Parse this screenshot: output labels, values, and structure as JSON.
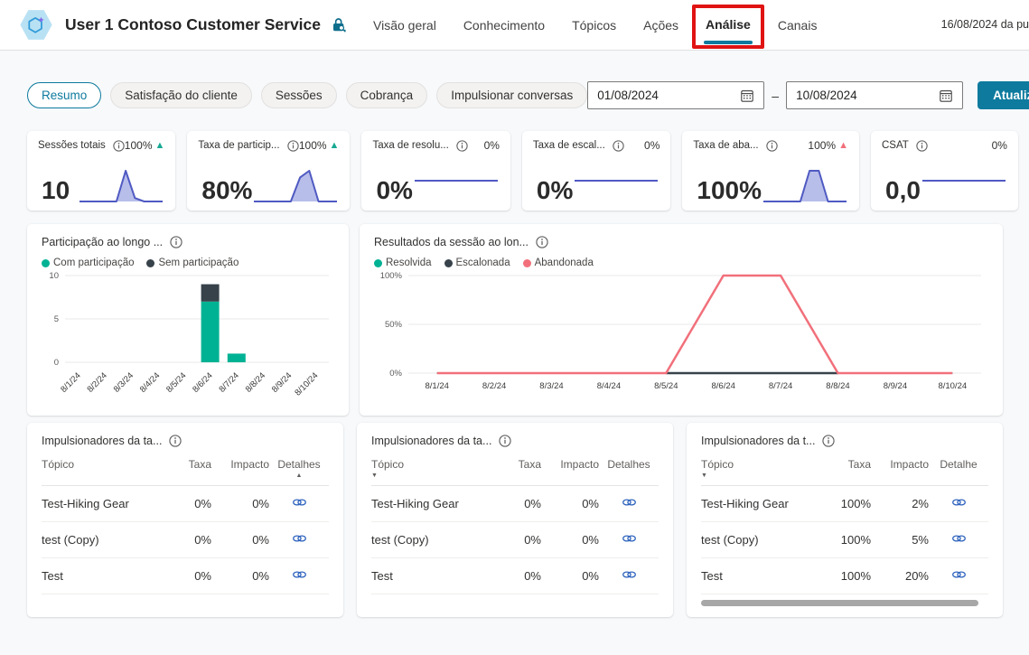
{
  "colors": {
    "accent": "#0e7a9e",
    "annotation": "#e01313",
    "spark_line": "#4f5ac2",
    "spark_fill": "#b0b7e8",
    "link_icon": "#2e63bd",
    "trend_up_teal": "#17a993",
    "trend_up_red": "#f1707b",
    "grid": "#e9e9e9"
  },
  "icons": {
    "trend_up": "▲",
    "sort_asc": "▲",
    "sort_desc": "▼"
  },
  "topbar": {
    "bot_name": "User 1 Contoso Customer Service",
    "nav_items": [
      "Visão geral",
      "Conhecimento",
      "Tópicos",
      "Ações",
      "Análise",
      "Canais"
    ],
    "active_nav": "Análise",
    "publish_info": "16/08/2024 da pu"
  },
  "filters": {
    "tabs": [
      {
        "label": "Resumo",
        "active": true
      },
      {
        "label": "Satisfação do cliente",
        "active": false
      },
      {
        "label": "Sessões",
        "active": false
      },
      {
        "label": "Cobrança",
        "active": false
      },
      {
        "label": "Impulsionar conversas",
        "active": false
      }
    ],
    "date_from": "01/08/2024",
    "date_to": "10/08/2024",
    "range_separator": "–",
    "update_button": "Atualizar"
  },
  "kpis": [
    {
      "label": "Sessões totais",
      "trend": "100%",
      "trend_dir": "up",
      "trend_color": "#17a993",
      "value": "10",
      "spark_values": [
        0,
        0,
        0,
        0,
        0,
        9,
        1,
        0,
        0,
        0
      ]
    },
    {
      "label": "Taxa de particip...",
      "trend": "100%",
      "trend_dir": "up",
      "trend_color": "#17a993",
      "value": "80%",
      "spark_values": [
        0,
        0,
        0,
        0,
        0,
        78,
        100,
        0,
        0,
        0
      ]
    },
    {
      "label": "Taxa de resolu...",
      "trend": "0%",
      "trend_dir": null,
      "trend_color": null,
      "value": "0%",
      "spark_values": [
        0,
        0,
        0,
        0,
        0,
        0,
        0,
        0,
        0,
        0
      ]
    },
    {
      "label": "Taxa de escal...",
      "trend": "0%",
      "trend_dir": null,
      "trend_color": null,
      "value": "0%",
      "spark_values": [
        0,
        0,
        0,
        0,
        0,
        0,
        0,
        0,
        0,
        0
      ]
    },
    {
      "label": "Taxa de aba...",
      "trend": "100%",
      "trend_dir": "up",
      "trend_color": "#f1707b",
      "value": "100%",
      "spark_values": [
        0,
        0,
        0,
        0,
        0,
        100,
        100,
        0,
        0,
        0
      ]
    },
    {
      "label": "CSAT",
      "trend": "0%",
      "trend_dir": null,
      "trend_color": null,
      "value": "0,0",
      "spark_values": [
        0,
        0,
        0,
        0,
        0,
        0,
        0,
        0,
        0,
        0
      ]
    }
  ],
  "charts": {
    "engagement": {
      "type": "bar",
      "title": "Participação ao longo ...",
      "legend": [
        {
          "label": "Com participação",
          "color": "#00b294"
        },
        {
          "label": "Sem participação",
          "color": "#37424a"
        }
      ],
      "categories": [
        "8/1/24",
        "8/2/24",
        "8/3/24",
        "8/4/24",
        "8/5/24",
        "8/6/24",
        "8/7/24",
        "8/8/24",
        "8/9/24",
        "8/10/24"
      ],
      "series": [
        {
          "name": "Com participação",
          "values": [
            0,
            0,
            0,
            0,
            0,
            7,
            1,
            0,
            0,
            0
          ]
        },
        {
          "name": "Sem participação",
          "values": [
            0,
            0,
            0,
            0,
            0,
            2,
            0,
            0,
            0,
            0
          ]
        }
      ],
      "yticks": [
        0,
        5,
        10
      ],
      "ymax": 10
    },
    "outcomes": {
      "type": "line",
      "title": "Resultados da sessão ao lon...",
      "legend": [
        {
          "label": "Resolvida",
          "color": "#00b294"
        },
        {
          "label": "Escalonada",
          "color": "#37424a"
        },
        {
          "label": "Abandonada",
          "color": "#f1707b"
        }
      ],
      "categories": [
        "8/1/24",
        "8/2/24",
        "8/3/24",
        "8/4/24",
        "8/5/24",
        "8/6/24",
        "8/7/24",
        "8/8/24",
        "8/9/24",
        "8/10/24"
      ],
      "series": [
        {
          "name": "Resolvida",
          "values": [
            0,
            0,
            0,
            0,
            0,
            0,
            0,
            0,
            0,
            0
          ]
        },
        {
          "name": "Escalonada",
          "values": [
            null,
            null,
            null,
            null,
            0,
            0,
            0,
            0,
            null,
            null
          ]
        },
        {
          "name": "Abandonada",
          "values": [
            0,
            0,
            0,
            0,
            0,
            100,
            100,
            0,
            0,
            0
          ]
        }
      ],
      "ytick_labels": [
        "0%",
        "50%",
        "100%"
      ],
      "ytick_values": [
        0,
        50,
        100
      ],
      "ymax": 100
    }
  },
  "driver_tables": [
    {
      "title": "Impulsionadores da ta...",
      "columns": [
        "Tópico",
        "Taxa",
        "Impacto",
        "Detalhes"
      ],
      "sort_column": "Detalhes",
      "sort_dir": "asc",
      "rows": [
        [
          "Test-Hiking Gear",
          "0%",
          "0%"
        ],
        [
          "test (Copy)",
          "0%",
          "0%"
        ],
        [
          "Test",
          "0%",
          "0%"
        ]
      ]
    },
    {
      "title": "Impulsionadores da ta...",
      "columns": [
        "Tópico",
        "Taxa",
        "Impacto",
        "Detalhes"
      ],
      "sort_column": "Tópico",
      "sort_dir": "desc",
      "rows": [
        [
          "Test-Hiking Gear",
          "0%",
          "0%"
        ],
        [
          "test (Copy)",
          "0%",
          "0%"
        ],
        [
          "Test",
          "0%",
          "0%"
        ]
      ]
    },
    {
      "title": "Impulsionadores da t...",
      "columns": [
        "Tópico",
        "Taxa",
        "Impacto",
        "Detalhe"
      ],
      "sort_column": "Tópico",
      "sort_dir": "desc",
      "has_scrollbar": true,
      "rows": [
        [
          "Test-Hiking Gear",
          "100%",
          "2%"
        ],
        [
          "test (Copy)",
          "100%",
          "5%"
        ],
        [
          "Test",
          "100%",
          "20%"
        ]
      ]
    }
  ]
}
